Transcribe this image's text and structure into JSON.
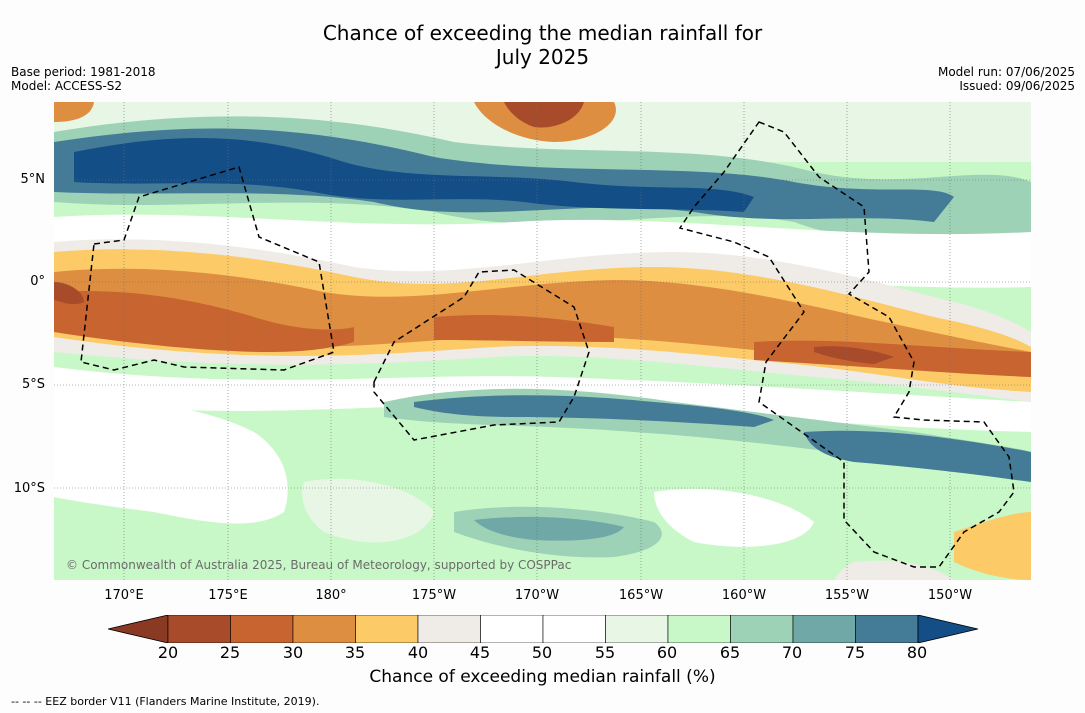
{
  "title_line1": "Chance of exceeding the median rainfall for",
  "title_line2": "July 2025",
  "meta_left": {
    "base_period": "Base period: 1981-2018",
    "model": "Model: ACCESS-S2"
  },
  "meta_right": {
    "model_run": "Model run: 07/06/2025",
    "issued": "Issued: 09/06/2025"
  },
  "lat_labels": [
    "5°N",
    "0°",
    "5°S",
    "10°S"
  ],
  "lon_labels": [
    "170°E",
    "175°E",
    "180°",
    "175°W",
    "170°W",
    "165°W",
    "160°W",
    "155°W",
    "150°W"
  ],
  "copyright": "© Commonwealth of Australia 2025, Bureau of Meteorology, supported by COSPPac",
  "colorbar": {
    "ticks": [
      "20",
      "25",
      "30",
      "35",
      "40",
      "45",
      "50",
      "55",
      "60",
      "65",
      "70",
      "75",
      "80"
    ],
    "colors": [
      "#a84b2a",
      "#c8642f",
      "#de8e41",
      "#fcca66",
      "#efebe6",
      "#ffffff",
      "#ffffff",
      "#e8f6e6",
      "#c9f8c8",
      "#9dd2b6",
      "#6fa8a6",
      "#447c98",
      "#134e87"
    ],
    "label": "Chance of exceeding median rainfall (%)"
  },
  "footnote": "--  --  -- EEZ border V11 (Flanders Marine Institute, 2019)."
}
